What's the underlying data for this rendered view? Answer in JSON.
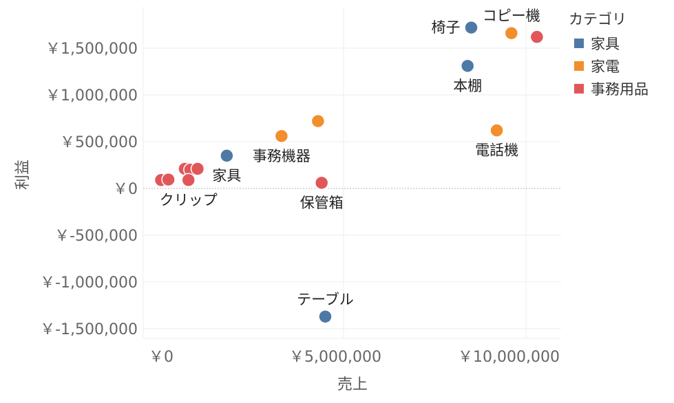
{
  "chart_data": {
    "type": "scatter",
    "xlabel": "売上",
    "ylabel": "利益",
    "xlim": [
      -500000,
      11000000
    ],
    "ylim": [
      -1600000,
      1900000
    ],
    "x_ticks": [
      {
        "value": 0,
        "label": "￥0"
      },
      {
        "value": 5000000,
        "label": "￥5,000,000"
      },
      {
        "value": 10000000,
        "label": "￥10,000,000"
      }
    ],
    "y_ticks": [
      {
        "value": 1500000,
        "label": "￥1,500,000"
      },
      {
        "value": 1000000,
        "label": "￥1,000,000"
      },
      {
        "value": 500000,
        "label": "￥500,000"
      },
      {
        "value": 0,
        "label": "￥0"
      },
      {
        "value": -500000,
        "label": "￥-500,000"
      },
      {
        "value": -1000000,
        "label": "￥-1,000,000"
      },
      {
        "value": -1500000,
        "label": "￥-1,500,000"
      }
    ],
    "grid": true,
    "legend": {
      "title": "カテゴリ",
      "position": "right",
      "items": [
        {
          "name": "家具",
          "color": "#4e79a7"
        },
        {
          "name": "家電",
          "color": "#f28e2b"
        },
        {
          "name": "事務用品",
          "color": "#e15759"
        }
      ]
    },
    "series": [
      {
        "name": "家具",
        "color": "#4e79a7",
        "points": [
          {
            "x": 8500000,
            "y": 1720000,
            "label": "椅子",
            "label_pos": "left"
          },
          {
            "x": 8400000,
            "y": 1310000,
            "label": "本棚",
            "label_pos": "below"
          },
          {
            "x": 1800000,
            "y": 350000,
            "label": "家具",
            "label_pos": "below"
          },
          {
            "x": 4500000,
            "y": -1370000,
            "label": "テーブル",
            "label_pos": "above"
          }
        ]
      },
      {
        "name": "家電",
        "color": "#f28e2b",
        "points": [
          {
            "x": 9600000,
            "y": 1660000,
            "label": "コピー機",
            "label_pos": "above"
          },
          {
            "x": 4300000,
            "y": 720000,
            "label": "",
            "label_pos": "none"
          },
          {
            "x": 3300000,
            "y": 560000,
            "label": "事務機器",
            "label_pos": "below"
          },
          {
            "x": 9200000,
            "y": 620000,
            "label": "電話機",
            "label_pos": "below"
          }
        ]
      },
      {
        "name": "事務用品",
        "color": "#e15759",
        "points": [
          {
            "x": 10300000,
            "y": 1620000,
            "label": "",
            "label_pos": "none"
          },
          {
            "x": 4400000,
            "y": 60000,
            "label": "保管箱",
            "label_pos": "below"
          },
          {
            "x": 0,
            "y": 90000,
            "label": "",
            "label_pos": "none"
          },
          {
            "x": 200000,
            "y": 95000,
            "label": "",
            "label_pos": "none"
          },
          {
            "x": 650000,
            "y": 210000,
            "label": "",
            "label_pos": "none"
          },
          {
            "x": 800000,
            "y": 200000,
            "label": "",
            "label_pos": "none"
          },
          {
            "x": 750000,
            "y": 90000,
            "label": "クリップ",
            "label_pos": "below"
          },
          {
            "x": 1000000,
            "y": 210000,
            "label": "",
            "label_pos": "none"
          }
        ]
      }
    ]
  }
}
